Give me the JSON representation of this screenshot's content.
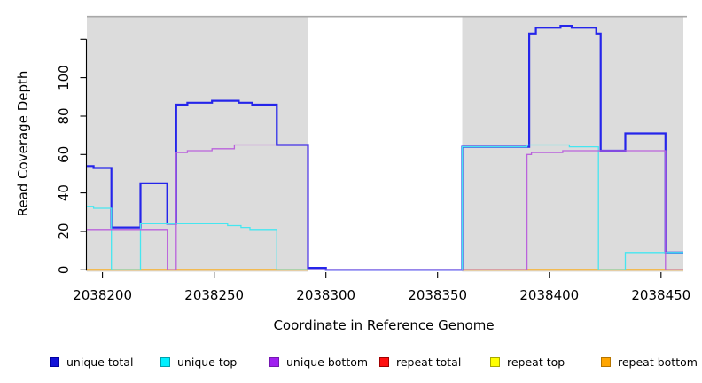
{
  "chart_data": {
    "type": "line",
    "subtype": "step-coverage",
    "title": "",
    "xlabel": "Coordinate in Reference Genome",
    "ylabel": "Read Coverage Depth",
    "xlim": [
      2038193,
      2038460
    ],
    "ylim": [
      0,
      132
    ],
    "grid": false,
    "legend_position": "bottom",
    "background_color": "#FFFFFF",
    "region_color": "#DCDCDC",
    "region_top_edge_color": "#A8A8A8",
    "x_ticks": [
      2038200,
      2038250,
      2038300,
      2038350,
      2038400,
      2038450
    ],
    "x_tick_labels": [
      "2038200",
      "2038250",
      "2038300",
      "2038350",
      "2038400",
      "2038450"
    ],
    "y_ticks": [
      {
        "value": 0,
        "label": "0"
      },
      {
        "value": 20,
        "label": "20"
      },
      {
        "value": 40,
        "label": "40"
      },
      {
        "value": 60,
        "label": "60"
      },
      {
        "value": 80,
        "label": "80"
      },
      {
        "value": 100,
        "label": "100"
      },
      {
        "value": 120,
        "label": ""
      }
    ],
    "shaded_regions": [
      {
        "from": 2038193,
        "to": 2038292
      },
      {
        "from": 2038361,
        "to": 2038460
      }
    ],
    "series": [
      {
        "name": "unique total",
        "color": "#2525EA",
        "width": 2.2,
        "segments": [
          [
            [
              2038193,
              54
            ],
            [
              2038196,
              53
            ],
            [
              2038204,
              22
            ],
            [
              2038217,
              45
            ],
            [
              2038229,
              24
            ],
            [
              2038233,
              86
            ],
            [
              2038238,
              87
            ],
            [
              2038249,
              88
            ],
            [
              2038261,
              87
            ],
            [
              2038267,
              86
            ],
            [
              2038278,
              65
            ],
            [
              2038292,
              1
            ],
            [
              2038300,
              0
            ],
            [
              2038361,
              64
            ],
            [
              2038391,
              123
            ],
            [
              2038394,
              126
            ],
            [
              2038405,
              127
            ],
            [
              2038410,
              126
            ],
            [
              2038421,
              123
            ],
            [
              2038423,
              62
            ],
            [
              2038434,
              71
            ],
            [
              2038452,
              9
            ],
            [
              2038460,
              9
            ]
          ]
        ]
      },
      {
        "name": "unique top",
        "color": "#45E6F0",
        "width": 1.3,
        "segments": [
          [
            [
              2038193,
              33
            ],
            [
              2038196,
              32
            ],
            [
              2038204,
              0
            ],
            [
              2038217,
              24
            ],
            [
              2038256,
              23
            ],
            [
              2038262,
              22
            ],
            [
              2038266,
              21
            ],
            [
              2038278,
              0
            ],
            [
              2038361,
              64
            ],
            [
              2038390,
              65
            ],
            [
              2038409,
              64
            ],
            [
              2038422,
              0
            ],
            [
              2038434,
              9
            ],
            [
              2038460,
              9
            ]
          ]
        ]
      },
      {
        "name": "unique bottom",
        "color": "#BA62DC",
        "width": 1.3,
        "segments": [
          [
            [
              2038193,
              21
            ],
            [
              2038229,
              0
            ],
            [
              2038233,
              61
            ],
            [
              2038238,
              62
            ],
            [
              2038249,
              63
            ],
            [
              2038259,
              65
            ],
            [
              2038292,
              0
            ],
            [
              2038390,
              60
            ],
            [
              2038392,
              61
            ],
            [
              2038406,
              62
            ],
            [
              2038452,
              0
            ],
            [
              2038460,
              0
            ]
          ]
        ]
      },
      {
        "name": "repeat total",
        "color": "#E23A3A",
        "width": 1.2,
        "segments": [
          [
            [
              2038193,
              0
            ],
            [
              2038292,
              0
            ]
          ],
          [
            [
              2038361,
              0
            ],
            [
              2038460,
              0
            ]
          ]
        ]
      },
      {
        "name": "repeat top",
        "color": "#FFFF00",
        "width": 1.2,
        "segments": [
          [
            [
              2038193,
              0
            ],
            [
              2038292,
              0
            ]
          ],
          [
            [
              2038361,
              0
            ],
            [
              2038460,
              0
            ]
          ]
        ]
      },
      {
        "name": "repeat bottom",
        "color": "#FFA500",
        "width": 1.8,
        "segments": [
          [
            [
              2038193,
              0
            ],
            [
              2038292,
              0
            ]
          ],
          [
            [
              2038361,
              0
            ],
            [
              2038460,
              0
            ]
          ]
        ]
      }
    ],
    "draw_order": [
      3,
      4,
      5,
      0,
      1,
      2
    ],
    "legend": [
      {
        "label": "unique total",
        "fill": "#1212D8",
        "border": "#0000A0"
      },
      {
        "label": "unique top",
        "fill": "#00F0FF",
        "border": "#00A0AC"
      },
      {
        "label": "unique bottom",
        "fill": "#A020F0",
        "border": "#7418B0"
      },
      {
        "label": "repeat total",
        "fill": "#FF1010",
        "border": "#A00000"
      },
      {
        "label": "repeat top",
        "fill": "#FFFF00",
        "border": "#A8A800"
      },
      {
        "label": "repeat bottom",
        "fill": "#FFA500",
        "border": "#B57400"
      }
    ]
  }
}
